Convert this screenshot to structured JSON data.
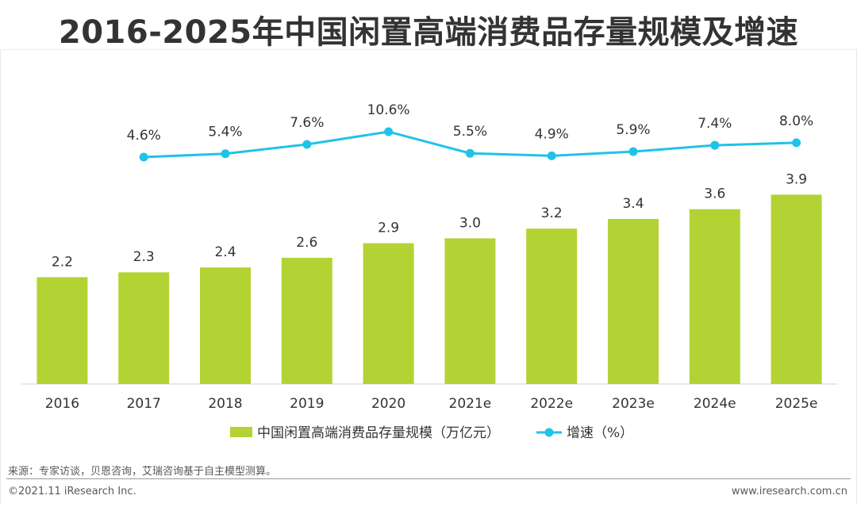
{
  "title": "2016-2025年中国闲置高端消费品存量规模及增速",
  "colors": {
    "bar": "#b3d334",
    "line": "#1fc3e9",
    "text": "#333333",
    "axis": "#d0d0d0"
  },
  "chart_data": {
    "type": "bar",
    "categories": [
      "2016",
      "2017",
      "2018",
      "2019",
      "2020",
      "2021e",
      "2022e",
      "2023e",
      "2024e",
      "2025e"
    ],
    "series": [
      {
        "name": "中国闲置高端消费品存量规模（万亿元）",
        "type": "bar",
        "values": [
          2.2,
          2.3,
          2.4,
          2.6,
          2.9,
          3.0,
          3.2,
          3.4,
          3.6,
          3.9
        ],
        "labels": [
          "2.2",
          "2.3",
          "2.4",
          "2.6",
          "2.9",
          "3.0",
          "3.2",
          "3.4",
          "3.6",
          "3.9"
        ]
      },
      {
        "name": "增速（%）",
        "type": "line",
        "values": [
          null,
          4.6,
          5.4,
          7.6,
          10.6,
          5.5,
          4.9,
          5.9,
          7.4,
          8.0
        ],
        "labels": [
          "",
          "4.6%",
          "5.4%",
          "7.6%",
          "10.6%",
          "5.5%",
          "4.9%",
          "5.9%",
          "7.4%",
          "8.0%"
        ]
      }
    ],
    "title": "2016-2025年中国闲置高端消费品存量规模及增速",
    "legend_position": "bottom",
    "grid": false
  },
  "footer": {
    "source": "来源：专家访谈，贝恩咨询，艾瑞咨询基于自主模型测算。",
    "copyright": "©2021.11 iResearch Inc.",
    "website": "www.iresearch.com.cn"
  }
}
